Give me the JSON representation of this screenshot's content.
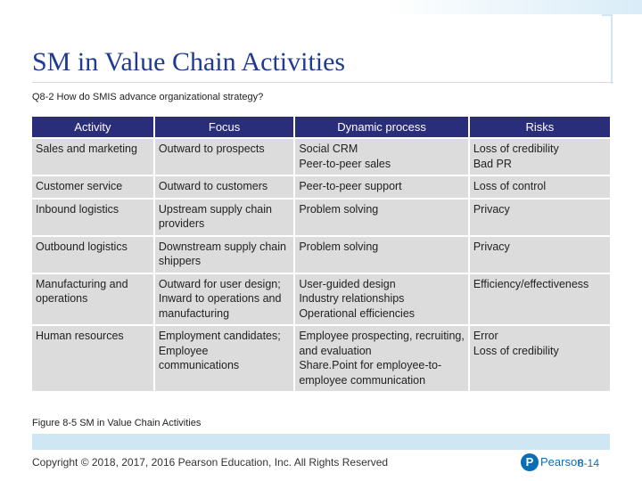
{
  "title": "SM in Value Chain Activities",
  "subtitle": "Q8-2 How do SMIS advance organizational strategy?",
  "table": {
    "headers": [
      "Activity",
      "Focus",
      "Dynamic process",
      "Risks"
    ],
    "rows": [
      [
        "Sales and marketing",
        "Outward to prospects",
        "Social CRM\nPeer-to-peer sales",
        "Loss of credibility\nBad PR"
      ],
      [
        "Customer service",
        "Outward to customers",
        "Peer-to-peer support",
        "Loss of control"
      ],
      [
        "Inbound logistics",
        "Upstream supply chain providers",
        "Problem solving",
        "Privacy"
      ],
      [
        "Outbound logistics",
        "Downstream supply chain shippers",
        "Problem solving",
        "Privacy"
      ],
      [
        "Manufacturing and operations",
        "Outward for user design;\nInward to operations and manufacturing",
        "User-guided design\nIndustry relationships\nOperational efficiencies",
        "Efficiency/effectiveness"
      ],
      [
        "Human resources",
        "Employment candidates;\nEmployee communications",
        "Employee prospecting, recruiting, and evaluation\nShare.Point for employee-to-employee communication",
        "Error\nLoss of credibility"
      ]
    ]
  },
  "caption": "Figure 8-5 SM in Value Chain Activities",
  "footer": {
    "copyright": "Copyright © 2018, 2017, 2016 Pearson Education, Inc. All Rights Reserved",
    "logo_letter": "P",
    "brand": "Pearson",
    "slide_number": "8-14"
  },
  "colors": {
    "title": "#1f3a93",
    "header_bg": "#2a2d7a",
    "cell_bg": "#dcdcdc",
    "band": "#cfe6f3",
    "brand": "#0a6eb4"
  }
}
